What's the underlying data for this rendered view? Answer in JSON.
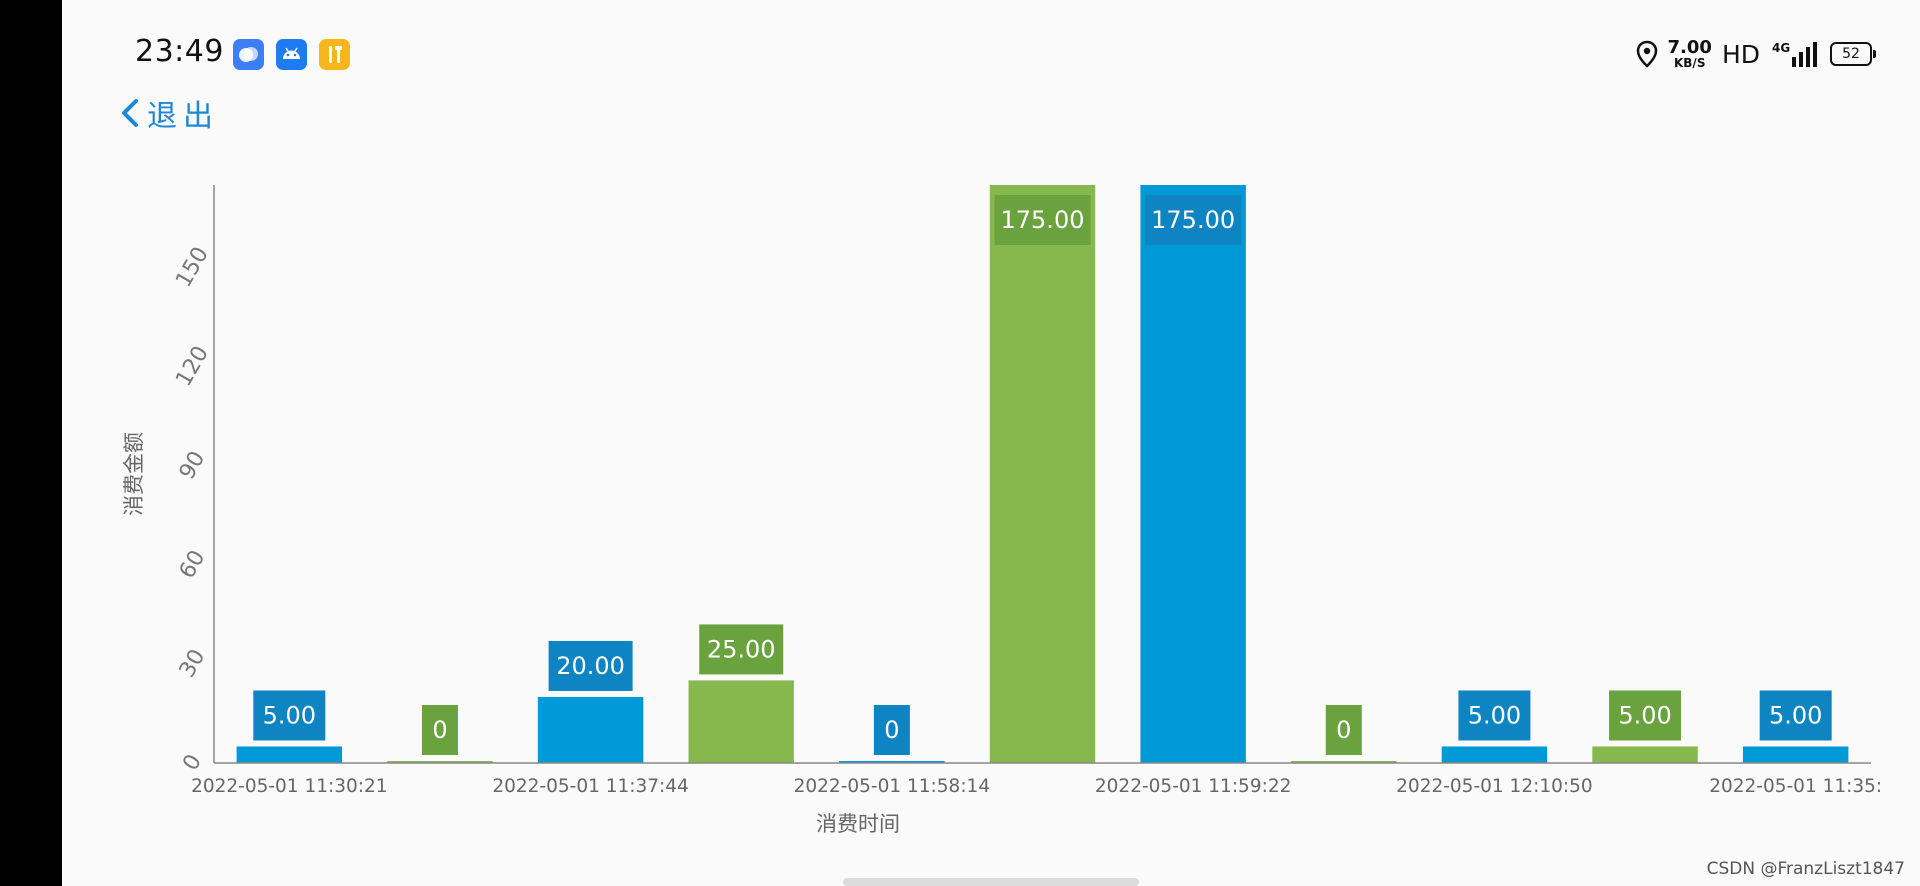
{
  "status_bar": {
    "time": "23:49",
    "net_speed_value": "7.00",
    "net_speed_unit": "KB/S",
    "hd_label": "HD",
    "signal_label": "4G",
    "battery": "52",
    "icons": [
      "app-icon-blue",
      "android-icon",
      "tools-icon",
      "location-icon",
      "signal-icon"
    ]
  },
  "nav": {
    "back_label": "退出",
    "back_icon": "chevron-left-icon"
  },
  "colors": {
    "blue": "#0099d8",
    "green": "#87b84d",
    "blue_label": "#0e85c2",
    "green_label": "#6aa33d",
    "accent": "#1e88d6"
  },
  "chart_data": {
    "type": "bar",
    "xlabel": "消费时间",
    "ylabel": "消费金额",
    "ylim": [
      0,
      175
    ],
    "yticks": [
      0,
      30,
      60,
      90,
      120,
      150
    ],
    "grid": false,
    "values": [
      5,
      0,
      20,
      25,
      0,
      175,
      175,
      0,
      5,
      5,
      5
    ],
    "value_labels": [
      "5.00",
      "0",
      "20.00",
      "25.00",
      "0",
      "175.00",
      "175.00",
      "0",
      "5.00",
      "5.00",
      "5.00"
    ],
    "bar_colors": [
      "blue",
      "green",
      "blue",
      "green",
      "blue",
      "green",
      "blue",
      "green",
      "blue",
      "green",
      "blue"
    ],
    "x_tick_labels": [
      {
        "bar": 0,
        "text": "2022-05-01  11:30:21"
      },
      {
        "bar": 2,
        "text": "2022-05-01  11:37:44"
      },
      {
        "bar": 4,
        "text": "2022-05-01  11:58:14"
      },
      {
        "bar": 6,
        "text": "2022-05-01  11:59:22"
      },
      {
        "bar": 8,
        "text": "2022-05-01  12:10:50"
      },
      {
        "bar": 10,
        "text": "2022-05-01  11:35:"
      }
    ]
  },
  "watermark": "CSDN @FranzLiszt1847"
}
